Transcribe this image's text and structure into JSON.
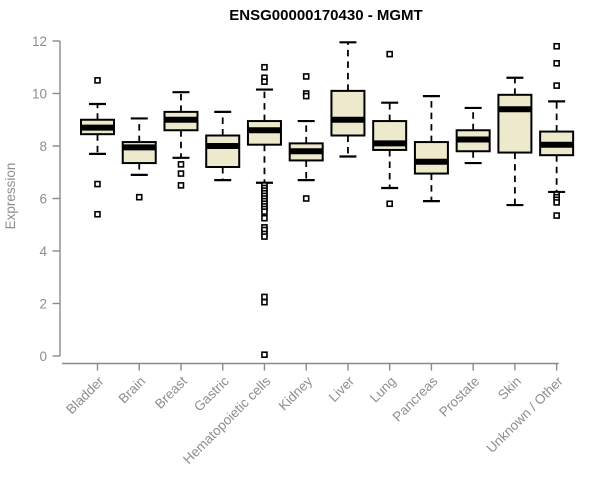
{
  "title": "ENSG00000170430 - MGMT",
  "colors": {
    "box_fill": "#ece9cd",
    "box_stroke": "#000000",
    "median": "#000000",
    "whisker": "#000000",
    "axis_line": "#8a8a8a",
    "axis_text": "#8e8e8e",
    "title_text": "#000000",
    "background": "#ffffff"
  },
  "chart_data": {
    "type": "boxplot",
    "title": "ENSG00000170430 - MGMT",
    "xlabel": "",
    "ylabel": "Expression",
    "ylim": [
      0,
      12
    ],
    "yticks": [
      0,
      2,
      4,
      6,
      8,
      10,
      12
    ],
    "grid": "off",
    "categories": [
      "Bladder",
      "Brain",
      "Breast",
      "Gastric",
      "Hematopoietic cells",
      "Kidney",
      "Liver",
      "Lung",
      "Pancreas",
      "Prostate",
      "Skin",
      "Unknown / Other"
    ],
    "boxes": [
      {
        "category": "Bladder",
        "low": 7.7,
        "q1": 8.45,
        "median": 8.7,
        "q3": 9.0,
        "high": 9.6,
        "outliers": [
          10.5,
          6.55,
          5.4
        ]
      },
      {
        "category": "Brain",
        "low": 6.9,
        "q1": 7.35,
        "median": 7.95,
        "q3": 8.15,
        "high": 9.05,
        "outliers": [
          6.05
        ]
      },
      {
        "category": "Breast",
        "low": 7.55,
        "q1": 8.6,
        "median": 9.0,
        "q3": 9.3,
        "high": 10.05,
        "outliers": [
          7.3,
          6.95,
          6.5
        ]
      },
      {
        "category": "Gastric",
        "low": 6.7,
        "q1": 7.2,
        "median": 8.0,
        "q3": 8.4,
        "high": 9.3,
        "outliers": []
      },
      {
        "category": "Hematopoietic cells",
        "low": 6.6,
        "q1": 8.05,
        "median": 8.6,
        "q3": 8.95,
        "high": 10.15,
        "outliers": [
          11.0,
          10.6,
          10.45,
          6.5,
          6.4,
          6.3,
          6.2,
          6.1,
          6.0,
          5.9,
          5.8,
          5.7,
          5.6,
          5.5,
          5.25,
          4.9,
          4.8,
          4.65,
          4.55,
          2.25,
          2.05,
          0.05
        ]
      },
      {
        "category": "Kidney",
        "low": 6.7,
        "q1": 7.45,
        "median": 7.8,
        "q3": 8.1,
        "high": 8.95,
        "outliers": [
          10.65,
          10.0,
          9.9,
          6.0
        ]
      },
      {
        "category": "Liver",
        "low": 7.6,
        "q1": 8.4,
        "median": 9.0,
        "q3": 10.1,
        "high": 11.95,
        "outliers": []
      },
      {
        "category": "Lung",
        "low": 6.4,
        "q1": 7.85,
        "median": 8.1,
        "q3": 8.95,
        "high": 9.65,
        "outliers": [
          11.5,
          5.8
        ]
      },
      {
        "category": "Pancreas",
        "low": 5.9,
        "q1": 6.95,
        "median": 7.4,
        "q3": 8.15,
        "high": 9.9,
        "outliers": []
      },
      {
        "category": "Prostate",
        "low": 7.35,
        "q1": 7.8,
        "median": 8.25,
        "q3": 8.6,
        "high": 9.45,
        "outliers": []
      },
      {
        "category": "Skin",
        "low": 5.75,
        "q1": 7.75,
        "median": 9.4,
        "q3": 9.95,
        "high": 10.6,
        "outliers": []
      },
      {
        "category": "Unknown / Other",
        "low": 6.25,
        "q1": 7.65,
        "median": 8.05,
        "q3": 8.55,
        "high": 9.7,
        "outliers": [
          11.8,
          11.15,
          10.3,
          6.15,
          6.05,
          5.95,
          5.85,
          5.35
        ]
      }
    ]
  }
}
